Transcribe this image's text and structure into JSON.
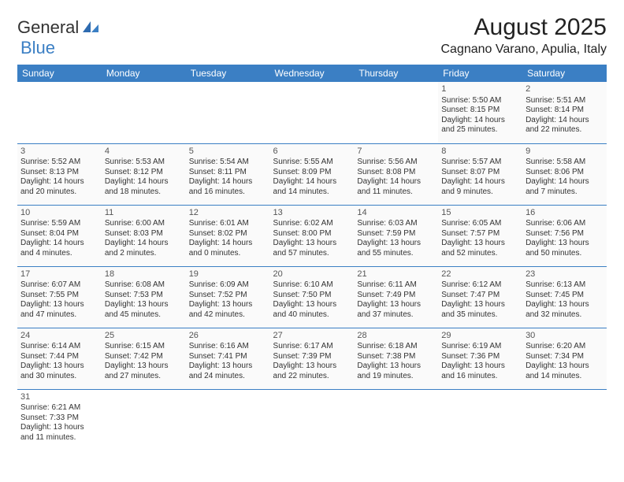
{
  "logo": {
    "text1": "General",
    "text2": "Blue"
  },
  "title": "August 2025",
  "location": "Cagnano Varano, Apulia, Italy",
  "colors": {
    "header_bg": "#3b7fc4",
    "header_text": "#ffffff",
    "row_border": "#3b7fc4",
    "cell_bg": "#fafafa",
    "page_bg": "#ffffff",
    "text": "#333333"
  },
  "day_headers": [
    "Sunday",
    "Monday",
    "Tuesday",
    "Wednesday",
    "Thursday",
    "Friday",
    "Saturday"
  ],
  "weeks": [
    [
      null,
      null,
      null,
      null,
      null,
      {
        "n": "1",
        "sunrise": "Sunrise: 5:50 AM",
        "sunset": "Sunset: 8:15 PM",
        "d1": "Daylight: 14 hours",
        "d2": "and 25 minutes."
      },
      {
        "n": "2",
        "sunrise": "Sunrise: 5:51 AM",
        "sunset": "Sunset: 8:14 PM",
        "d1": "Daylight: 14 hours",
        "d2": "and 22 minutes."
      }
    ],
    [
      {
        "n": "3",
        "sunrise": "Sunrise: 5:52 AM",
        "sunset": "Sunset: 8:13 PM",
        "d1": "Daylight: 14 hours",
        "d2": "and 20 minutes."
      },
      {
        "n": "4",
        "sunrise": "Sunrise: 5:53 AM",
        "sunset": "Sunset: 8:12 PM",
        "d1": "Daylight: 14 hours",
        "d2": "and 18 minutes."
      },
      {
        "n": "5",
        "sunrise": "Sunrise: 5:54 AM",
        "sunset": "Sunset: 8:11 PM",
        "d1": "Daylight: 14 hours",
        "d2": "and 16 minutes."
      },
      {
        "n": "6",
        "sunrise": "Sunrise: 5:55 AM",
        "sunset": "Sunset: 8:09 PM",
        "d1": "Daylight: 14 hours",
        "d2": "and 14 minutes."
      },
      {
        "n": "7",
        "sunrise": "Sunrise: 5:56 AM",
        "sunset": "Sunset: 8:08 PM",
        "d1": "Daylight: 14 hours",
        "d2": "and 11 minutes."
      },
      {
        "n": "8",
        "sunrise": "Sunrise: 5:57 AM",
        "sunset": "Sunset: 8:07 PM",
        "d1": "Daylight: 14 hours",
        "d2": "and 9 minutes."
      },
      {
        "n": "9",
        "sunrise": "Sunrise: 5:58 AM",
        "sunset": "Sunset: 8:06 PM",
        "d1": "Daylight: 14 hours",
        "d2": "and 7 minutes."
      }
    ],
    [
      {
        "n": "10",
        "sunrise": "Sunrise: 5:59 AM",
        "sunset": "Sunset: 8:04 PM",
        "d1": "Daylight: 14 hours",
        "d2": "and 4 minutes."
      },
      {
        "n": "11",
        "sunrise": "Sunrise: 6:00 AM",
        "sunset": "Sunset: 8:03 PM",
        "d1": "Daylight: 14 hours",
        "d2": "and 2 minutes."
      },
      {
        "n": "12",
        "sunrise": "Sunrise: 6:01 AM",
        "sunset": "Sunset: 8:02 PM",
        "d1": "Daylight: 14 hours",
        "d2": "and 0 minutes."
      },
      {
        "n": "13",
        "sunrise": "Sunrise: 6:02 AM",
        "sunset": "Sunset: 8:00 PM",
        "d1": "Daylight: 13 hours",
        "d2": "and 57 minutes."
      },
      {
        "n": "14",
        "sunrise": "Sunrise: 6:03 AM",
        "sunset": "Sunset: 7:59 PM",
        "d1": "Daylight: 13 hours",
        "d2": "and 55 minutes."
      },
      {
        "n": "15",
        "sunrise": "Sunrise: 6:05 AM",
        "sunset": "Sunset: 7:57 PM",
        "d1": "Daylight: 13 hours",
        "d2": "and 52 minutes."
      },
      {
        "n": "16",
        "sunrise": "Sunrise: 6:06 AM",
        "sunset": "Sunset: 7:56 PM",
        "d1": "Daylight: 13 hours",
        "d2": "and 50 minutes."
      }
    ],
    [
      {
        "n": "17",
        "sunrise": "Sunrise: 6:07 AM",
        "sunset": "Sunset: 7:55 PM",
        "d1": "Daylight: 13 hours",
        "d2": "and 47 minutes."
      },
      {
        "n": "18",
        "sunrise": "Sunrise: 6:08 AM",
        "sunset": "Sunset: 7:53 PM",
        "d1": "Daylight: 13 hours",
        "d2": "and 45 minutes."
      },
      {
        "n": "19",
        "sunrise": "Sunrise: 6:09 AM",
        "sunset": "Sunset: 7:52 PM",
        "d1": "Daylight: 13 hours",
        "d2": "and 42 minutes."
      },
      {
        "n": "20",
        "sunrise": "Sunrise: 6:10 AM",
        "sunset": "Sunset: 7:50 PM",
        "d1": "Daylight: 13 hours",
        "d2": "and 40 minutes."
      },
      {
        "n": "21",
        "sunrise": "Sunrise: 6:11 AM",
        "sunset": "Sunset: 7:49 PM",
        "d1": "Daylight: 13 hours",
        "d2": "and 37 minutes."
      },
      {
        "n": "22",
        "sunrise": "Sunrise: 6:12 AM",
        "sunset": "Sunset: 7:47 PM",
        "d1": "Daylight: 13 hours",
        "d2": "and 35 minutes."
      },
      {
        "n": "23",
        "sunrise": "Sunrise: 6:13 AM",
        "sunset": "Sunset: 7:45 PM",
        "d1": "Daylight: 13 hours",
        "d2": "and 32 minutes."
      }
    ],
    [
      {
        "n": "24",
        "sunrise": "Sunrise: 6:14 AM",
        "sunset": "Sunset: 7:44 PM",
        "d1": "Daylight: 13 hours",
        "d2": "and 30 minutes."
      },
      {
        "n": "25",
        "sunrise": "Sunrise: 6:15 AM",
        "sunset": "Sunset: 7:42 PM",
        "d1": "Daylight: 13 hours",
        "d2": "and 27 minutes."
      },
      {
        "n": "26",
        "sunrise": "Sunrise: 6:16 AM",
        "sunset": "Sunset: 7:41 PM",
        "d1": "Daylight: 13 hours",
        "d2": "and 24 minutes."
      },
      {
        "n": "27",
        "sunrise": "Sunrise: 6:17 AM",
        "sunset": "Sunset: 7:39 PM",
        "d1": "Daylight: 13 hours",
        "d2": "and 22 minutes."
      },
      {
        "n": "28",
        "sunrise": "Sunrise: 6:18 AM",
        "sunset": "Sunset: 7:38 PM",
        "d1": "Daylight: 13 hours",
        "d2": "and 19 minutes."
      },
      {
        "n": "29",
        "sunrise": "Sunrise: 6:19 AM",
        "sunset": "Sunset: 7:36 PM",
        "d1": "Daylight: 13 hours",
        "d2": "and 16 minutes."
      },
      {
        "n": "30",
        "sunrise": "Sunrise: 6:20 AM",
        "sunset": "Sunset: 7:34 PM",
        "d1": "Daylight: 13 hours",
        "d2": "and 14 minutes."
      }
    ],
    [
      {
        "n": "31",
        "sunrise": "Sunrise: 6:21 AM",
        "sunset": "Sunset: 7:33 PM",
        "d1": "Daylight: 13 hours",
        "d2": "and 11 minutes."
      },
      null,
      null,
      null,
      null,
      null,
      null
    ]
  ]
}
